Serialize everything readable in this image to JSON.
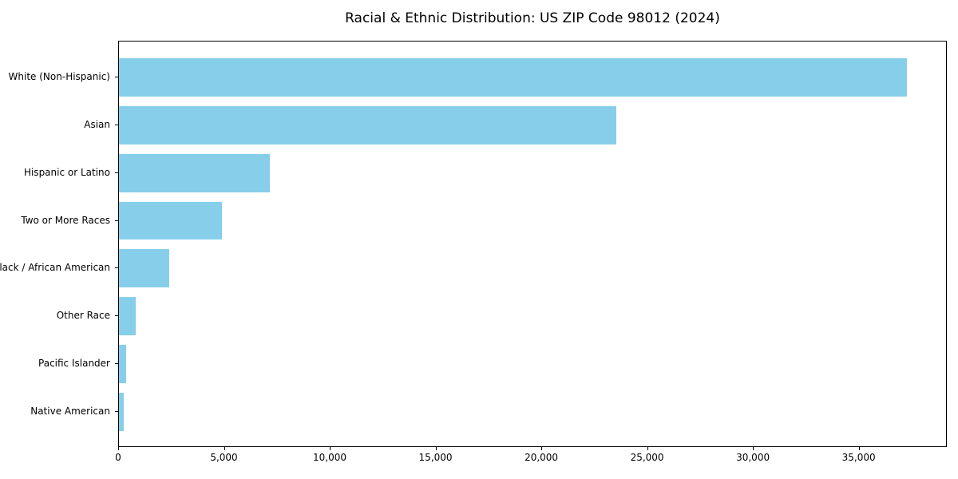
{
  "title": "Racial & Ethnic Distribution: US ZIP Code 98012 (2024)",
  "chart_data": {
    "type": "bar",
    "orientation": "horizontal",
    "title": "Racial & Ethnic Distribution: US ZIP Code 98012 (2024)",
    "xlabel": "",
    "ylabel": "",
    "categories": [
      "White (Non-Hispanic)",
      "Asian",
      "Hispanic or Latino",
      "Two or More Races",
      "Black / African American",
      "Other Race",
      "Pacific Islander",
      "Native American"
    ],
    "values": [
      37300,
      23570,
      7160,
      4870,
      2380,
      790,
      330,
      215
    ],
    "xlim": [
      0,
      39165
    ],
    "xticks": [
      0,
      5000,
      10000,
      15000,
      20000,
      25000,
      30000,
      35000
    ],
    "xtick_labels": [
      "0",
      "5,000",
      "10,000",
      "15,000",
      "20,000",
      "25,000",
      "30,000",
      "35,000"
    ],
    "bar_color": "#87CEEB",
    "grid": false,
    "legend": false,
    "frame": true
  }
}
